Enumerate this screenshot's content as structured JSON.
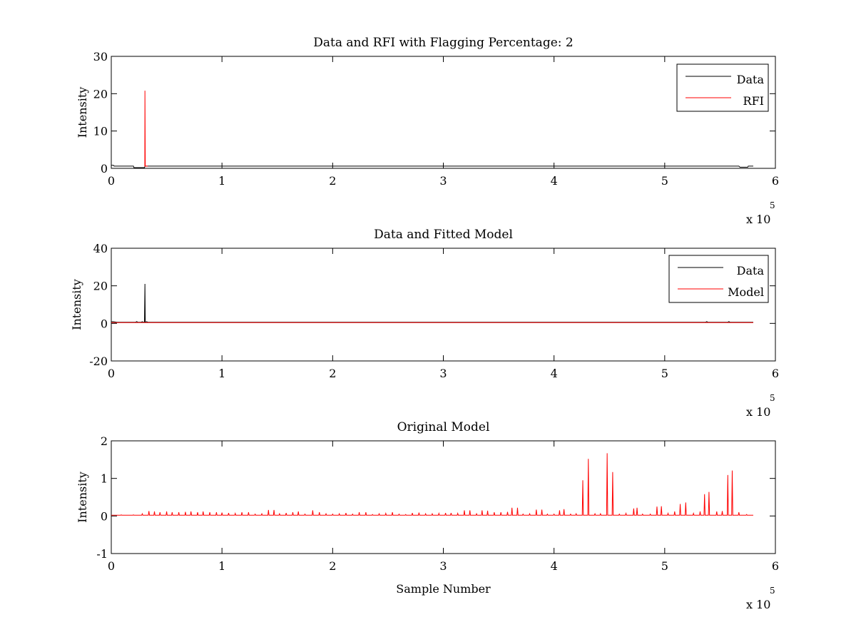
{
  "figure": {
    "background": "#ffffff"
  },
  "chart_data": [
    {
      "type": "line",
      "title": "Data and RFI with Flagging Percentage: 2",
      "xlabel": "",
      "ylabel": "Intensity",
      "xlim": [
        0,
        600000
      ],
      "ylim": [
        0,
        30
      ],
      "xticks": [
        0,
        100000,
        200000,
        300000,
        400000,
        500000,
        600000
      ],
      "xtick_labels": [
        "0",
        "1",
        "2",
        "3",
        "4",
        "5",
        "6"
      ],
      "yticks": [
        0,
        10,
        20,
        30
      ],
      "ytick_labels": [
        "0",
        "10",
        "20",
        "30"
      ],
      "x_exponent": {
        "base": "x 10",
        "power": "5"
      },
      "legend": {
        "position": "top-right",
        "entries": [
          "Data",
          "RFI"
        ]
      },
      "grid": false,
      "series": [
        {
          "name": "Data",
          "color": "#000000",
          "x": [
            0,
            2000,
            2600,
            7000,
            15000,
            20000,
            20500,
            30000,
            30500,
            100000,
            200000,
            300000,
            400000,
            500000,
            567000,
            568000,
            575000,
            575500,
            580000
          ],
          "y": [
            0.8,
            0.8,
            0.6,
            0.6,
            0.6,
            0.6,
            0.2,
            0.2,
            0.6,
            0.6,
            0.6,
            0.6,
            0.6,
            0.6,
            0.6,
            0.3,
            0.3,
            0.6,
            0.6
          ]
        },
        {
          "name": "RFI",
          "color": "#ff0000",
          "x": [
            30000,
            30300,
            30400,
            30700,
            33000
          ],
          "y": [
            0.6,
            0.6,
            20.8,
            0.6,
            0.6
          ]
        }
      ]
    },
    {
      "type": "line",
      "title": "Data and Fitted Model",
      "xlabel": "",
      "ylabel": "Intensity",
      "xlim": [
        0,
        600000
      ],
      "ylim": [
        -20,
        40
      ],
      "xticks": [
        0,
        100000,
        200000,
        300000,
        400000,
        500000,
        600000
      ],
      "xtick_labels": [
        "0",
        "1",
        "2",
        "3",
        "4",
        "5",
        "6"
      ],
      "yticks": [
        -20,
        0,
        20,
        40
      ],
      "ytick_labels": [
        "-20",
        "0",
        "20",
        "40"
      ],
      "x_exponent": {
        "base": "x 10",
        "power": "5"
      },
      "legend": {
        "position": "top-right",
        "entries": [
          "Data",
          "Model"
        ]
      },
      "grid": false,
      "series": [
        {
          "name": "Data",
          "color": "#000000",
          "x": [
            0,
            2000,
            5000,
            10000,
            22000,
            23000,
            24000,
            27000,
            28000,
            29000,
            30000,
            30400,
            30700,
            32000,
            33000,
            100000,
            200000,
            300000,
            400000,
            500000,
            537000,
            538000,
            539000,
            557000,
            558000,
            559000,
            580000
          ],
          "y": [
            0.9,
            0.9,
            0.6,
            0.6,
            0.6,
            1.0,
            0.6,
            0.6,
            0.9,
            0.6,
            0.6,
            21.0,
            0.6,
            0.9,
            0.6,
            0.6,
            0.6,
            0.6,
            0.6,
            0.6,
            0.6,
            1.0,
            0.6,
            0.6,
            1.0,
            0.6,
            0.6
          ]
        },
        {
          "name": "Model",
          "color": "#ff0000",
          "x": [
            0,
            100000,
            200000,
            300000,
            400000,
            500000,
            580000
          ],
          "y": [
            0.4,
            0.4,
            0.4,
            0.4,
            0.4,
            0.4,
            0.4
          ]
        }
      ]
    },
    {
      "type": "line",
      "title": "Original Model",
      "xlabel": "Sample Number",
      "ylabel": "Intensity",
      "xlim": [
        0,
        600000
      ],
      "ylim": [
        -1,
        2
      ],
      "xticks": [
        0,
        100000,
        200000,
        300000,
        400000,
        500000,
        600000
      ],
      "xtick_labels": [
        "0",
        "1",
        "2",
        "3",
        "4",
        "5",
        "6"
      ],
      "yticks": [
        -1,
        0,
        1,
        2
      ],
      "ytick_labels": [
        "-1",
        "0",
        "1",
        "2"
      ],
      "x_exponent": {
        "base": "x 10",
        "power": "5"
      },
      "grid": false,
      "baseline": 0.02,
      "series": [
        {
          "name": "",
          "color": "#ff0000",
          "peaks": [
            [
              3000,
              0.02
            ],
            [
              9000,
              0.03
            ],
            [
              15000,
              0.02
            ],
            [
              20000,
              0.03
            ],
            [
              28000,
              0.06
            ],
            [
              34000,
              0.13
            ],
            [
              39000,
              0.12
            ],
            [
              44000,
              0.1
            ],
            [
              50000,
              0.12
            ],
            [
              55000,
              0.1
            ],
            [
              61000,
              0.1
            ],
            [
              67000,
              0.11
            ],
            [
              72000,
              0.12
            ],
            [
              78000,
              0.1
            ],
            [
              83000,
              0.12
            ],
            [
              89000,
              0.1
            ],
            [
              95000,
              0.1
            ],
            [
              100000,
              0.09
            ],
            [
              106000,
              0.08
            ],
            [
              112000,
              0.07
            ],
            [
              118000,
              0.1
            ],
            [
              124000,
              0.1
            ],
            [
              130000,
              0.05
            ],
            [
              136000,
              0.06
            ],
            [
              142000,
              0.16
            ],
            [
              147000,
              0.16
            ],
            [
              152000,
              0.06
            ],
            [
              158000,
              0.08
            ],
            [
              164000,
              0.1
            ],
            [
              169000,
              0.12
            ],
            [
              175000,
              0.05
            ],
            [
              182000,
              0.15
            ],
            [
              188000,
              0.1
            ],
            [
              194000,
              0.06
            ],
            [
              200000,
              0.05
            ],
            [
              206000,
              0.06
            ],
            [
              212000,
              0.08
            ],
            [
              218000,
              0.05
            ],
            [
              224000,
              0.1
            ],
            [
              230000,
              0.1
            ],
            [
              236000,
              0.04
            ],
            [
              242000,
              0.06
            ],
            [
              248000,
              0.07
            ],
            [
              254000,
              0.1
            ],
            [
              260000,
              0.05
            ],
            [
              266000,
              0.04
            ],
            [
              272000,
              0.08
            ],
            [
              278000,
              0.09
            ],
            [
              284000,
              0.06
            ],
            [
              290000,
              0.06
            ],
            [
              296000,
              0.07
            ],
            [
              302000,
              0.08
            ],
            [
              307000,
              0.08
            ],
            [
              313000,
              0.07
            ],
            [
              319000,
              0.15
            ],
            [
              324000,
              0.15
            ],
            [
              330000,
              0.06
            ],
            [
              335000,
              0.15
            ],
            [
              340000,
              0.14
            ],
            [
              346000,
              0.1
            ],
            [
              352000,
              0.1
            ],
            [
              358000,
              0.11
            ],
            [
              362000,
              0.22
            ],
            [
              367000,
              0.22
            ],
            [
              372000,
              0.05
            ],
            [
              378000,
              0.06
            ],
            [
              384000,
              0.17
            ],
            [
              389000,
              0.17
            ],
            [
              394000,
              0.05
            ],
            [
              400000,
              0.05
            ],
            [
              405000,
              0.15
            ],
            [
              409000,
              0.18
            ],
            [
              415000,
              0.05
            ],
            [
              420000,
              0.06
            ],
            [
              426000,
              0.95
            ],
            [
              431000,
              1.52
            ],
            [
              437000,
              0.06
            ],
            [
              442000,
              0.06
            ],
            [
              448000,
              1.67
            ],
            [
              453000,
              1.17
            ],
            [
              459000,
              0.05
            ],
            [
              465000,
              0.07
            ],
            [
              472000,
              0.2
            ],
            [
              475000,
              0.22
            ],
            [
              480000,
              0.05
            ],
            [
              487000,
              0.05
            ],
            [
              493000,
              0.25
            ],
            [
              497000,
              0.26
            ],
            [
              503000,
              0.07
            ],
            [
              509000,
              0.12
            ],
            [
              514000,
              0.32
            ],
            [
              519000,
              0.36
            ],
            [
              526000,
              0.07
            ],
            [
              532000,
              0.12
            ],
            [
              536000,
              0.58
            ],
            [
              540000,
              0.64
            ],
            [
              547000,
              0.12
            ],
            [
              552000,
              0.13
            ],
            [
              557000,
              1.09
            ],
            [
              561000,
              1.21
            ],
            [
              567000,
              0.1
            ],
            [
              574000,
              0.04
            ]
          ]
        }
      ]
    }
  ]
}
